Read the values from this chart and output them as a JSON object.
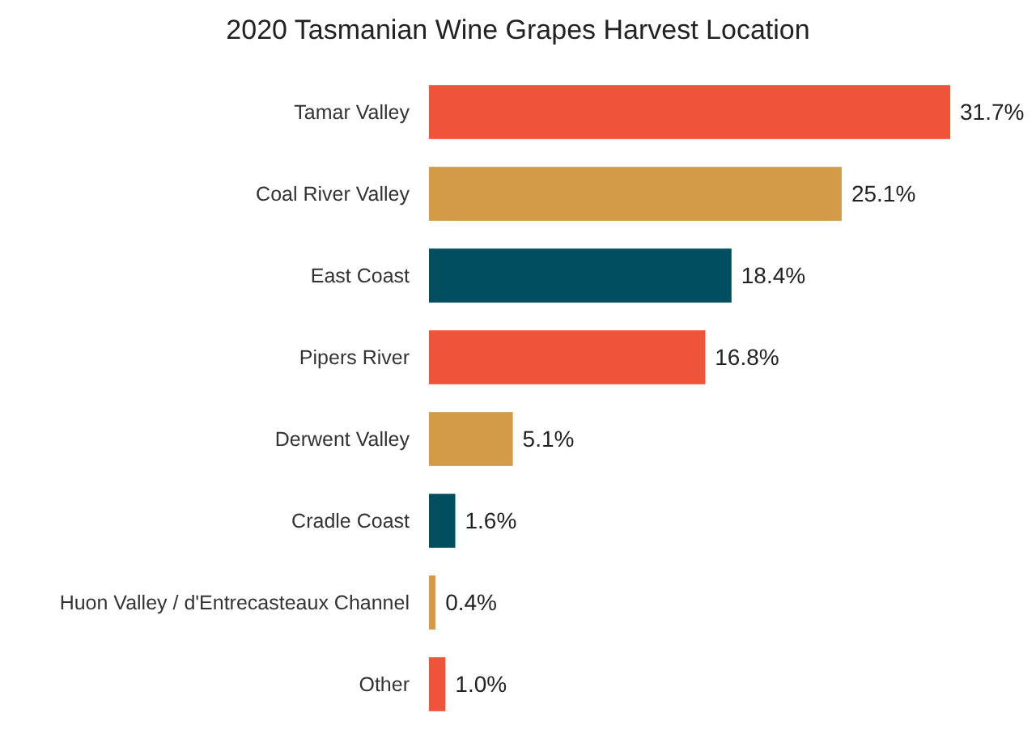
{
  "chart_data": {
    "type": "bar",
    "orientation": "horizontal",
    "title": "2020 Tasmanian Wine Grapes Harvest Location",
    "categories": [
      "Tamar Valley",
      "Coal River Valley",
      "East Coast",
      "Pipers River",
      "Derwent Valley",
      "Cradle Coast",
      "Huon Valley / d'Entrecasteaux Channel",
      "Other"
    ],
    "values": [
      31.7,
      25.1,
      18.4,
      16.8,
      5.1,
      1.6,
      0.4,
      1.0
    ],
    "colors": [
      "#ef533a",
      "#d39a47",
      "#004e5f",
      "#ef533a",
      "#d39a47",
      "#004e5f",
      "#d39a47",
      "#ef533a"
    ],
    "value_labels": [
      "31.7%",
      "25.1%",
      "18.4%",
      "16.8%",
      "5.1%",
      "1.6%",
      "0.4%",
      "1.0%"
    ],
    "tick_labels": "y"
  }
}
